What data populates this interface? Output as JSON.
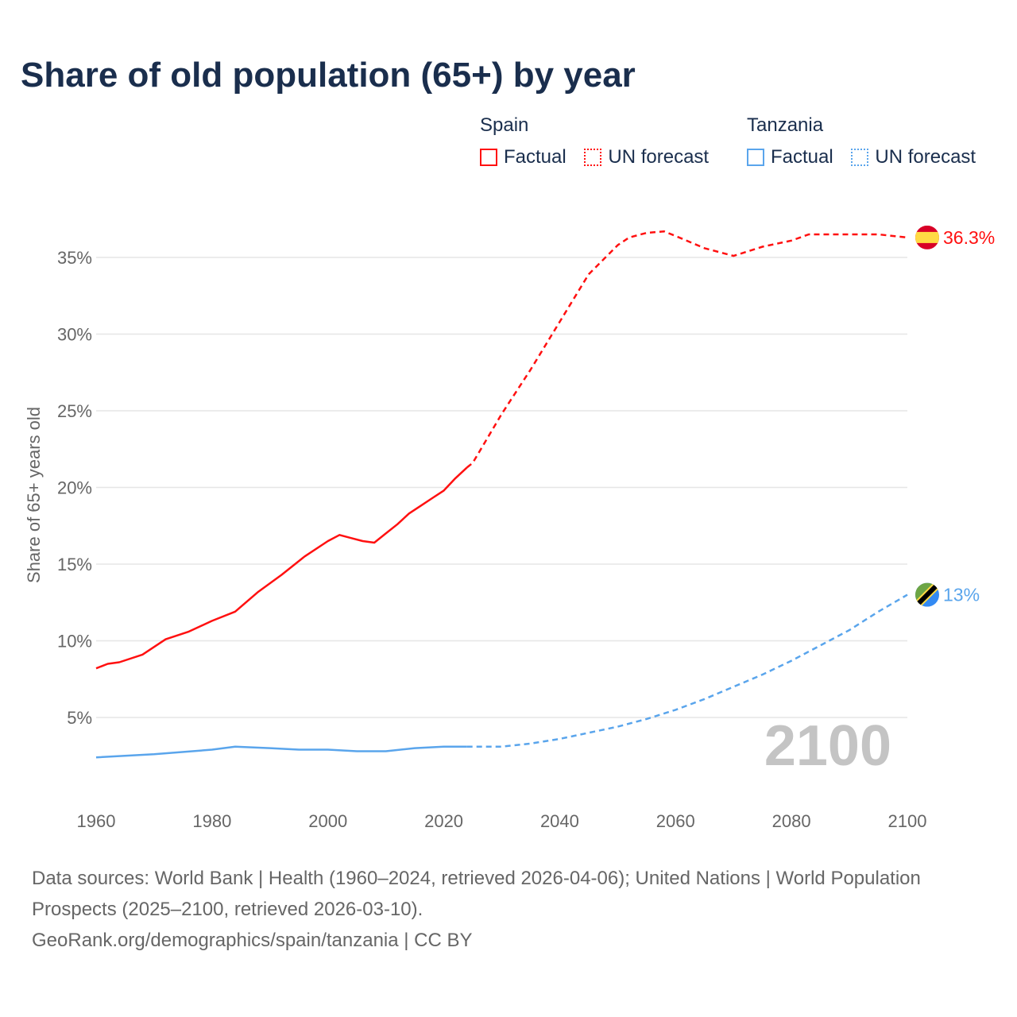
{
  "title": "Share of old population (65+) by year",
  "legend": [
    {
      "country": "Spain",
      "factual": "Factual",
      "forecast": "UN forecast",
      "color": "#ff1010"
    },
    {
      "country": "Tanzania",
      "factual": "Factual",
      "forecast": "UN forecast",
      "color": "#5aa5ec"
    }
  ],
  "year_watermark": "2100",
  "footer": {
    "sources": "Data sources: World Bank | Health (1960–2024, retrieved 2026-04-06); United Nations | World Population Prospects (2025–2100, retrieved 2026-03-10).",
    "credit": "GeoRank.org/demographics/spain/tanzania | CC BY"
  },
  "chart_data": {
    "type": "line",
    "title": "Share of old population (65+) by year",
    "xlabel": "",
    "ylabel": "Share of 65+ years old",
    "xlim": [
      1960,
      2100
    ],
    "ylim": [
      0,
      37
    ],
    "xticks": [
      "1960",
      "1980",
      "2000",
      "2020",
      "2040",
      "2060",
      "2080",
      "2100"
    ],
    "yticks": [
      "5%",
      "10%",
      "15%",
      "20%",
      "25%",
      "30%",
      "35%"
    ],
    "grid": true,
    "legend_position": "top-right",
    "series": [
      {
        "name": "Spain Factual",
        "color": "#ff1010",
        "dashed": false,
        "x": [
          1960,
          1962,
          1964,
          1968,
          1972,
          1976,
          1980,
          1984,
          1988,
          1992,
          1996,
          2000,
          2002,
          2004,
          2006,
          2008,
          2010,
          2012,
          2014,
          2016,
          2018,
          2020,
          2022,
          2024
        ],
        "y": [
          8.2,
          8.5,
          8.6,
          9.1,
          10.1,
          10.6,
          11.3,
          11.9,
          13.2,
          14.3,
          15.5,
          16.5,
          16.9,
          16.7,
          16.5,
          16.4,
          17.0,
          17.6,
          18.3,
          18.8,
          19.3,
          19.8,
          20.6,
          21.3
        ]
      },
      {
        "name": "Spain UN forecast",
        "color": "#ff1010",
        "dashed": true,
        "x": [
          2024,
          2025,
          2030,
          2035,
          2040,
          2045,
          2050,
          2052,
          2055,
          2058,
          2060,
          2065,
          2070,
          2075,
          2080,
          2083,
          2090,
          2095,
          2100
        ],
        "y": [
          21.3,
          21.6,
          24.8,
          27.7,
          30.8,
          33.9,
          35.8,
          36.3,
          36.6,
          36.7,
          36.4,
          35.6,
          35.1,
          35.7,
          36.1,
          36.5,
          36.5,
          36.5,
          36.3
        ],
        "end_label": "36.3%"
      },
      {
        "name": "Tanzania Factual",
        "color": "#5aa5ec",
        "dashed": false,
        "x": [
          1960,
          1970,
          1980,
          1984,
          1990,
          1995,
          2000,
          2005,
          2010,
          2015,
          2020,
          2024
        ],
        "y": [
          2.4,
          2.6,
          2.9,
          3.1,
          3.0,
          2.9,
          2.9,
          2.8,
          2.8,
          3.0,
          3.1,
          3.1
        ]
      },
      {
        "name": "Tanzania UN forecast",
        "color": "#5aa5ec",
        "dashed": true,
        "x": [
          2024,
          2030,
          2035,
          2040,
          2045,
          2050,
          2055,
          2060,
          2065,
          2070,
          2075,
          2080,
          2085,
          2090,
          2095,
          2100
        ],
        "y": [
          3.1,
          3.1,
          3.3,
          3.6,
          4.0,
          4.4,
          4.9,
          5.5,
          6.2,
          7.0,
          7.8,
          8.7,
          9.7,
          10.7,
          11.9,
          13.0
        ],
        "end_label": "13%"
      }
    ]
  }
}
